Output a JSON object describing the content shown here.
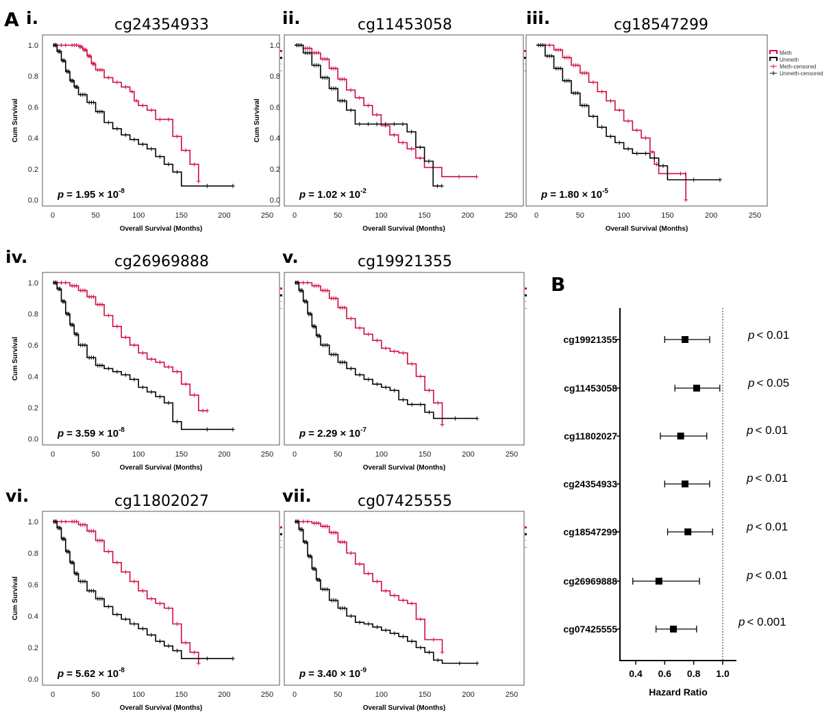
{
  "figure": {
    "panel_a_letter": "A",
    "panel_b_letter": "B"
  },
  "colors": {
    "meth": "#d10b3f",
    "unmeth": "#000000"
  },
  "legend": {
    "meth": "Meth",
    "unmeth": "Unmeth",
    "meth_censored": "Meth-censored",
    "unmeth_censored": "Unmeth-censored"
  },
  "chart_data": [
    {
      "type": "line",
      "chart_kind": "kaplan-meier",
      "roman": "i.",
      "title": "cg24354933",
      "xlabel": "Overall Survival (Months)",
      "ylabel": "Cum Survival",
      "xlim": [
        0,
        250
      ],
      "ylim": [
        0,
        1
      ],
      "xticks": [
        0,
        50,
        100,
        150,
        200,
        250
      ],
      "yticks": [
        0.0,
        0.2,
        0.4,
        0.6,
        0.8,
        1.0
      ],
      "p_prefix": "p",
      "p_mantissa": "= 1.95 × 10",
      "p_exp": "-8",
      "series": [
        {
          "name": "Meth",
          "x": [
            0,
            20,
            30,
            35,
            40,
            45,
            50,
            60,
            70,
            80,
            90,
            95,
            100,
            110,
            120,
            130,
            140,
            150,
            160,
            170
          ],
          "y": [
            1.0,
            1.0,
            0.99,
            0.97,
            0.93,
            0.88,
            0.84,
            0.79,
            0.76,
            0.73,
            0.7,
            0.64,
            0.61,
            0.58,
            0.52,
            0.52,
            0.41,
            0.32,
            0.23,
            0.12
          ]
        },
        {
          "name": "Unmeth",
          "x": [
            0,
            5,
            10,
            15,
            20,
            25,
            30,
            40,
            50,
            60,
            70,
            80,
            90,
            100,
            110,
            120,
            130,
            140,
            150,
            210
          ],
          "y": [
            1.0,
            0.96,
            0.9,
            0.83,
            0.77,
            0.73,
            0.68,
            0.63,
            0.57,
            0.5,
            0.46,
            0.42,
            0.39,
            0.36,
            0.33,
            0.28,
            0.23,
            0.18,
            0.09,
            0.09
          ]
        }
      ]
    },
    {
      "type": "line",
      "chart_kind": "kaplan-meier",
      "roman": "ii.",
      "title": "cg11453058",
      "xlabel": "Overall Survival (Months)",
      "ylabel": "Cum Survival",
      "xlim": [
        0,
        250
      ],
      "ylim": [
        0,
        1
      ],
      "xticks": [
        0,
        50,
        100,
        150,
        200,
        250
      ],
      "yticks": [
        0.0,
        0.2,
        0.4,
        0.6,
        0.8,
        1.0
      ],
      "p_prefix": "p",
      "p_mantissa": "= 1.02 × 10",
      "p_exp": "-2",
      "series": [
        {
          "name": "Meth",
          "x": [
            0,
            10,
            20,
            30,
            40,
            50,
            60,
            70,
            80,
            90,
            100,
            110,
            120,
            130,
            140,
            150,
            170,
            210
          ],
          "y": [
            1.0,
            0.98,
            0.95,
            0.91,
            0.85,
            0.78,
            0.71,
            0.66,
            0.61,
            0.55,
            0.48,
            0.42,
            0.37,
            0.33,
            0.27,
            0.21,
            0.15,
            0.15
          ]
        },
        {
          "name": "Unmeth",
          "x": [
            0,
            10,
            20,
            30,
            40,
            50,
            60,
            70,
            80,
            90,
            100,
            110,
            120,
            130,
            140,
            150,
            160,
            170
          ],
          "y": [
            1.0,
            0.95,
            0.87,
            0.79,
            0.72,
            0.64,
            0.58,
            0.49,
            0.49,
            0.49,
            0.49,
            0.49,
            0.49,
            0.44,
            0.34,
            0.25,
            0.09,
            0.09
          ]
        }
      ]
    },
    {
      "type": "line",
      "chart_kind": "kaplan-meier",
      "roman": "iii.",
      "title": "cg18547299",
      "xlabel": "Overall Survival (Months)",
      "ylabel": "",
      "xlim": [
        0,
        250
      ],
      "ylim": [
        0,
        1
      ],
      "xticks": [
        0,
        50,
        100,
        150,
        200,
        250
      ],
      "yticks": [],
      "p_prefix": "p",
      "p_mantissa": "= 1.80 × 10",
      "p_exp": "-5",
      "series": [
        {
          "name": "Meth",
          "x": [
            0,
            20,
            30,
            40,
            50,
            60,
            70,
            80,
            90,
            100,
            110,
            120,
            130,
            135,
            140,
            160,
            170,
            171
          ],
          "y": [
            1.0,
            0.97,
            0.92,
            0.87,
            0.82,
            0.76,
            0.7,
            0.64,
            0.58,
            0.51,
            0.45,
            0.4,
            0.31,
            0.23,
            0.17,
            0.17,
            0.17,
            0.0
          ]
        },
        {
          "name": "Unmeth",
          "x": [
            0,
            10,
            20,
            30,
            40,
            50,
            60,
            70,
            80,
            90,
            100,
            110,
            120,
            130,
            140,
            150,
            210
          ],
          "y": [
            1.0,
            0.93,
            0.85,
            0.77,
            0.69,
            0.61,
            0.54,
            0.47,
            0.41,
            0.37,
            0.33,
            0.3,
            0.3,
            0.27,
            0.22,
            0.13,
            0.13
          ]
        }
      ]
    },
    {
      "type": "line",
      "chart_kind": "kaplan-meier",
      "roman": "iv.",
      "title": "cg26969888",
      "xlabel": "Overall Survival (Months)",
      "ylabel": "Cum Survival",
      "xlim": [
        0,
        250
      ],
      "ylim": [
        0,
        1
      ],
      "xticks": [
        0,
        50,
        100,
        150,
        200,
        250
      ],
      "yticks": [
        0.0,
        0.2,
        0.4,
        0.6,
        0.8,
        1.0
      ],
      "p_prefix": "p",
      "p_mantissa": "= 3.59 × 10",
      "p_exp": "-8",
      "series": [
        {
          "name": "Meth",
          "x": [
            0,
            20,
            30,
            40,
            50,
            60,
            70,
            80,
            90,
            100,
            110,
            120,
            130,
            140,
            150,
            160,
            170,
            180
          ],
          "y": [
            1.0,
            0.98,
            0.95,
            0.91,
            0.86,
            0.79,
            0.72,
            0.65,
            0.6,
            0.55,
            0.51,
            0.49,
            0.46,
            0.43,
            0.35,
            0.28,
            0.18,
            0.18
          ]
        },
        {
          "name": "Unmeth",
          "x": [
            0,
            5,
            10,
            15,
            20,
            25,
            30,
            40,
            50,
            60,
            70,
            80,
            90,
            100,
            110,
            120,
            130,
            140,
            150,
            210
          ],
          "y": [
            1.0,
            0.96,
            0.88,
            0.8,
            0.73,
            0.67,
            0.6,
            0.52,
            0.47,
            0.45,
            0.43,
            0.41,
            0.38,
            0.33,
            0.3,
            0.27,
            0.23,
            0.11,
            0.06,
            0.06
          ]
        }
      ]
    },
    {
      "type": "line",
      "chart_kind": "kaplan-meier",
      "roman": "v.",
      "title": "cg19921355",
      "xlabel": "Overall Survival (Months)",
      "ylabel": "",
      "xlim": [
        0,
        250
      ],
      "ylim": [
        0,
        1
      ],
      "xticks": [
        0,
        50,
        100,
        150,
        200,
        250
      ],
      "yticks": [],
      "p_prefix": "p",
      "p_mantissa": "= 2.29 × 10",
      "p_exp": "-7",
      "series": [
        {
          "name": "Meth",
          "x": [
            0,
            20,
            30,
            40,
            50,
            60,
            70,
            80,
            90,
            100,
            110,
            120,
            130,
            140,
            150,
            160,
            170
          ],
          "y": [
            1.0,
            0.98,
            0.95,
            0.9,
            0.84,
            0.77,
            0.71,
            0.67,
            0.63,
            0.58,
            0.56,
            0.55,
            0.48,
            0.4,
            0.31,
            0.23,
            0.09
          ]
        },
        {
          "name": "Unmeth",
          "x": [
            0,
            5,
            10,
            15,
            20,
            25,
            30,
            40,
            50,
            60,
            70,
            80,
            90,
            100,
            110,
            120,
            130,
            140,
            150,
            160,
            210
          ],
          "y": [
            1.0,
            0.95,
            0.88,
            0.8,
            0.72,
            0.66,
            0.6,
            0.54,
            0.49,
            0.45,
            0.41,
            0.38,
            0.35,
            0.33,
            0.31,
            0.25,
            0.22,
            0.22,
            0.17,
            0.13,
            0.13
          ]
        }
      ]
    },
    {
      "type": "line",
      "chart_kind": "kaplan-meier",
      "roman": "vi.",
      "title": "cg11802027",
      "xlabel": "Overall Survival (Months)",
      "ylabel": "Cum Survival",
      "xlim": [
        0,
        250
      ],
      "ylim": [
        0,
        1
      ],
      "xticks": [
        0,
        50,
        100,
        150,
        200,
        250
      ],
      "yticks": [
        0.0,
        0.2,
        0.4,
        0.6,
        0.8,
        1.0
      ],
      "p_prefix": "p",
      "p_mantissa": "= 5.62 × 10",
      "p_exp": "-8",
      "series": [
        {
          "name": "Meth",
          "x": [
            0,
            20,
            30,
            40,
            50,
            60,
            70,
            80,
            90,
            100,
            110,
            120,
            130,
            140,
            150,
            160,
            170
          ],
          "y": [
            1.0,
            1.0,
            0.98,
            0.94,
            0.88,
            0.81,
            0.74,
            0.68,
            0.62,
            0.56,
            0.51,
            0.48,
            0.45,
            0.35,
            0.23,
            0.17,
            0.1
          ]
        },
        {
          "name": "Unmeth",
          "x": [
            0,
            5,
            10,
            15,
            20,
            25,
            30,
            40,
            50,
            60,
            70,
            80,
            90,
            100,
            110,
            120,
            130,
            140,
            150,
            210
          ],
          "y": [
            1.0,
            0.96,
            0.89,
            0.81,
            0.74,
            0.67,
            0.62,
            0.56,
            0.51,
            0.46,
            0.41,
            0.38,
            0.35,
            0.32,
            0.28,
            0.24,
            0.21,
            0.18,
            0.13,
            0.13
          ]
        }
      ]
    },
    {
      "type": "line",
      "chart_kind": "kaplan-meier",
      "roman": "vii.",
      "title": "cg07425555",
      "xlabel": "Overall Survival (Months)",
      "ylabel": "",
      "xlim": [
        0,
        250
      ],
      "ylim": [
        0,
        1
      ],
      "xticks": [
        0,
        50,
        100,
        150,
        200,
        250
      ],
      "yticks": [],
      "p_prefix": "p",
      "p_mantissa": "= 3.40 × 10",
      "p_exp": "-9",
      "series": [
        {
          "name": "Meth",
          "x": [
            0,
            20,
            30,
            40,
            50,
            60,
            70,
            80,
            90,
            100,
            110,
            120,
            130,
            140,
            150,
            170
          ],
          "y": [
            1.0,
            0.99,
            0.97,
            0.93,
            0.87,
            0.8,
            0.73,
            0.67,
            0.62,
            0.56,
            0.53,
            0.5,
            0.48,
            0.38,
            0.25,
            0.17
          ]
        },
        {
          "name": "Unmeth",
          "x": [
            0,
            5,
            10,
            15,
            20,
            25,
            30,
            40,
            50,
            60,
            70,
            80,
            90,
            100,
            110,
            120,
            130,
            140,
            150,
            160,
            170,
            210
          ],
          "y": [
            1.0,
            0.95,
            0.87,
            0.78,
            0.7,
            0.63,
            0.57,
            0.5,
            0.45,
            0.4,
            0.36,
            0.35,
            0.33,
            0.31,
            0.29,
            0.27,
            0.24,
            0.2,
            0.17,
            0.12,
            0.1,
            0.1
          ]
        }
      ]
    },
    {
      "type": "scatter",
      "chart_kind": "forest-plot",
      "title": "",
      "xlabel": "Hazard Ratio",
      "xlim": [
        0.3,
        1.1
      ],
      "xticks": [
        0.4,
        0.6,
        0.8,
        1.0
      ],
      "xtick_labels": [
        "0.4",
        "0.6",
        "0.8",
        "1.0"
      ],
      "reference_line": 1.0,
      "rows": [
        {
          "label": "cg19921355",
          "hr": 0.74,
          "lo": 0.6,
          "hi": 0.91,
          "p": "< 0.01"
        },
        {
          "label": "cg11453058",
          "hr": 0.82,
          "lo": 0.67,
          "hi": 0.98,
          "p": "< 0.05"
        },
        {
          "label": "cg11802027",
          "hr": 0.71,
          "lo": 0.57,
          "hi": 0.89,
          "p": "< 0.01"
        },
        {
          "label": "cg24354933",
          "hr": 0.74,
          "lo": 0.6,
          "hi": 0.91,
          "p": "< 0.01"
        },
        {
          "label": "cg18547299",
          "hr": 0.76,
          "lo": 0.62,
          "hi": 0.93,
          "p": "< 0.01"
        },
        {
          "label": "cg26969888",
          "hr": 0.56,
          "lo": 0.38,
          "hi": 0.84,
          "p": "< 0.01"
        },
        {
          "label": "cg07425555",
          "hr": 0.66,
          "lo": 0.54,
          "hi": 0.82,
          "p": "< 0.001"
        }
      ]
    }
  ]
}
